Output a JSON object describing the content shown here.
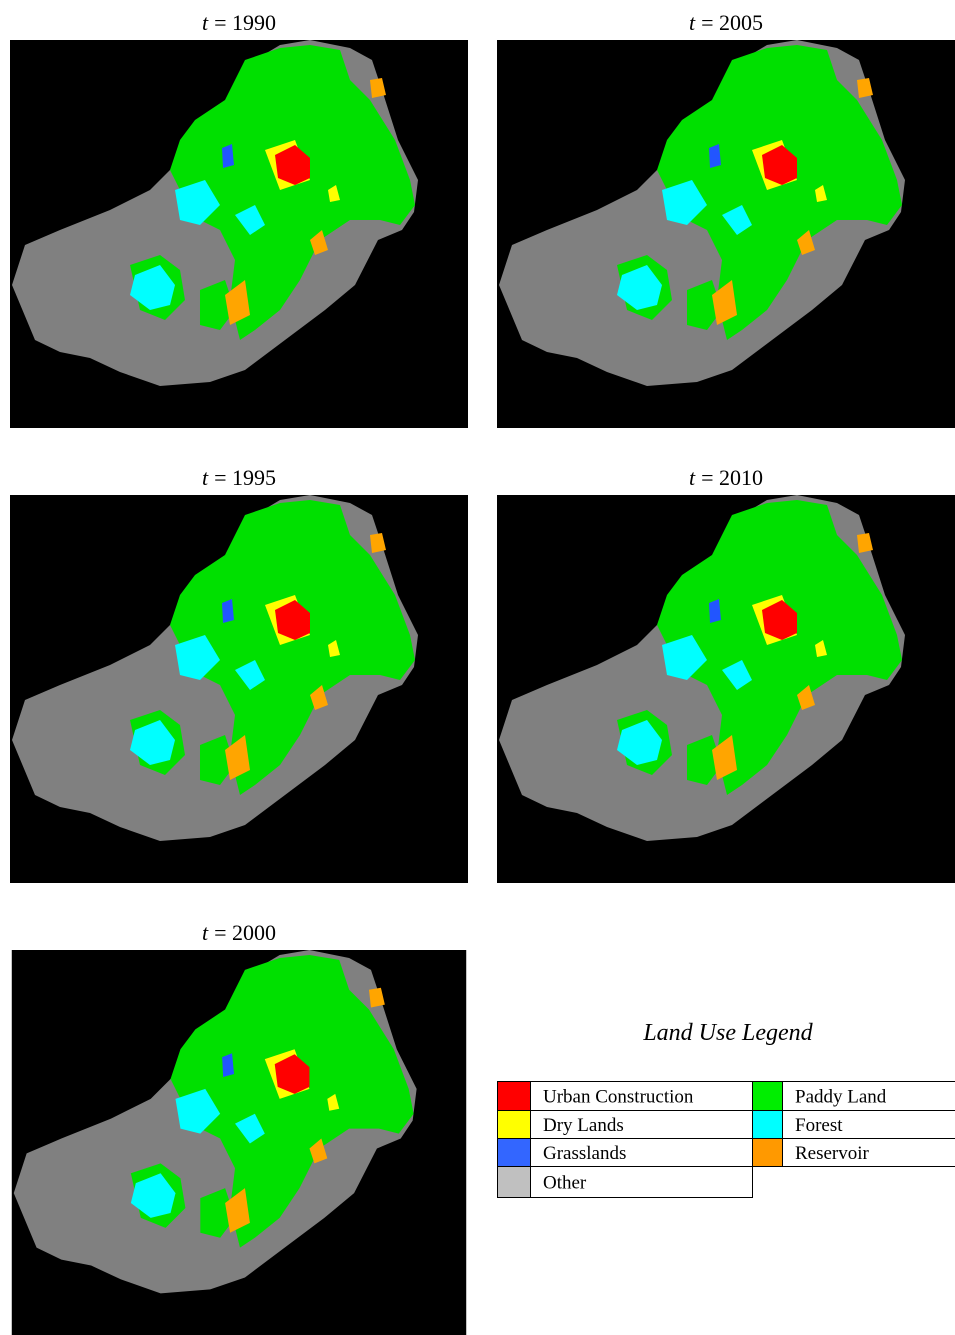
{
  "panels": [
    {
      "variable": "t",
      "label": "= 1990"
    },
    {
      "variable": "t",
      "label": "= 2005"
    },
    {
      "variable": "t",
      "label": "= 1995"
    },
    {
      "variable": "t",
      "label": "= 2010"
    },
    {
      "variable": "t",
      "label": "= 2000"
    }
  ],
  "legend": {
    "title": "Land Use Legend",
    "items": [
      {
        "name": "Urban Construction",
        "color": "#ff0000"
      },
      {
        "name": "Dry Lands",
        "color": "#ffff00"
      },
      {
        "name": "Grasslands",
        "color": "#3366ff"
      },
      {
        "name": "Other",
        "color": "#c0c0c0"
      },
      {
        "name": "Paddy Land",
        "color": "#00ee00"
      },
      {
        "name": "Forest",
        "color": "#00ffff"
      },
      {
        "name": "Reservoir",
        "color": "#ff9900"
      }
    ]
  }
}
